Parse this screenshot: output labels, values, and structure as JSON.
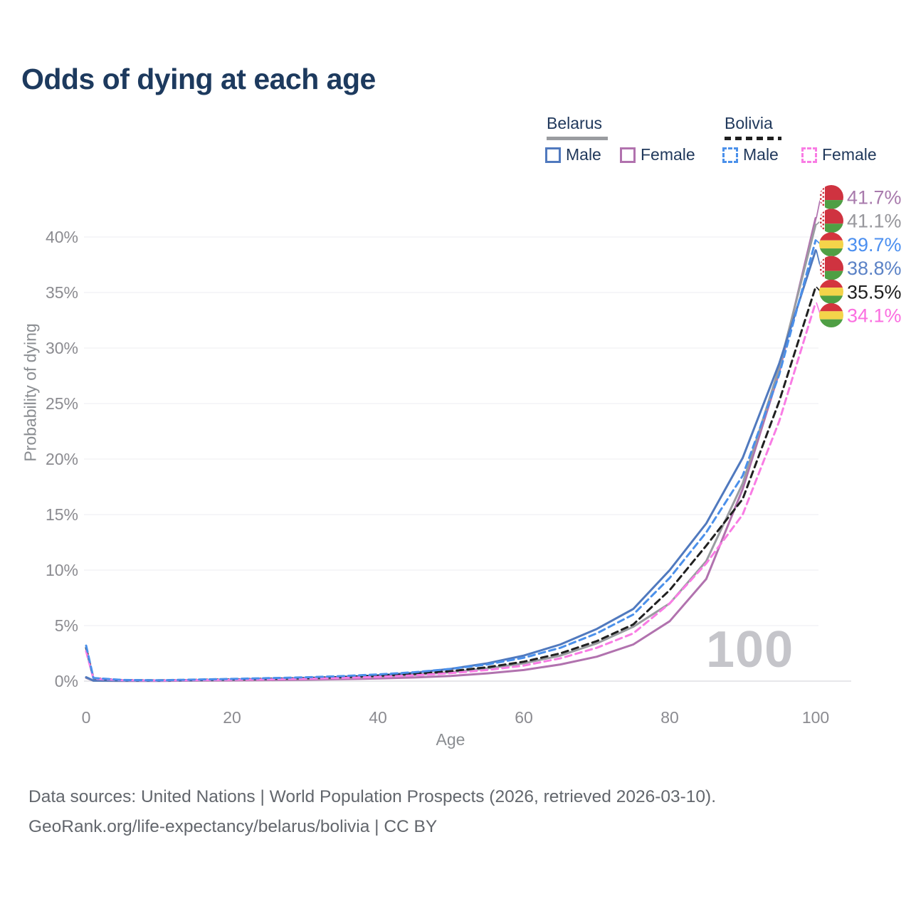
{
  "title": "Odds of dying at each age",
  "watermark": "100",
  "legend": {
    "groups": [
      {
        "label": "Belarus",
        "line_color": "#9a9ca0",
        "line_style": "solid"
      },
      {
        "label": "Bolivia",
        "line_color": "#1f1f1f",
        "line_style": "dashed"
      }
    ],
    "items": [
      {
        "label": "Male",
        "country": "Belarus",
        "box_color": "#5079be",
        "box_style": "solid"
      },
      {
        "label": "Female",
        "country": "Belarus",
        "box_color": "#b172ae",
        "box_style": "solid"
      },
      {
        "label": "Male",
        "country": "Bolivia",
        "box_color": "#4b90ea",
        "box_style": "dashed"
      },
      {
        "label": "Female",
        "country": "Bolivia",
        "box_color": "#f97ce4",
        "box_style": "dashed"
      }
    ]
  },
  "axes": {
    "x_label": "Age",
    "y_label": "Probability of dying",
    "x_ticks": [
      "0",
      "20",
      "40",
      "60",
      "80",
      "100"
    ],
    "x_tick_values": [
      0,
      20,
      40,
      60,
      80,
      100
    ],
    "y_ticks": [
      "0%",
      "5%",
      "10%",
      "15%",
      "20%",
      "25%",
      "30%",
      "35%",
      "40%"
    ],
    "y_tick_values": [
      0,
      5,
      10,
      15,
      20,
      25,
      30,
      35,
      40
    ]
  },
  "chart_data": {
    "type": "line",
    "title": "Odds of dying at each age",
    "xlabel": "Age",
    "ylabel": "Probability of dying",
    "xlim": [
      0,
      100
    ],
    "ylim_percent": [
      0,
      44
    ],
    "grid": true,
    "ages": [
      0,
      1,
      5,
      10,
      15,
      20,
      25,
      30,
      35,
      40,
      45,
      50,
      55,
      60,
      65,
      70,
      75,
      80,
      85,
      90,
      95,
      100
    ],
    "series": [
      {
        "id": "belarus-female",
        "name": "Belarus Female",
        "country": "Belarus",
        "sex": "female",
        "color": "#b172ae",
        "dashed": false,
        "values": [
          0.3,
          0.03,
          0.02,
          0.02,
          0.04,
          0.06,
          0.09,
          0.12,
          0.17,
          0.24,
          0.33,
          0.47,
          0.7,
          1.0,
          1.5,
          2.2,
          3.3,
          5.4,
          9.2,
          17.3,
          27.8,
          41.7
        ]
      },
      {
        "id": "belarus-total",
        "name": "Belarus",
        "country": "Belarus",
        "sex": "both",
        "color": "#9a9ca0",
        "dashed": false,
        "values": [
          0.33,
          0.04,
          0.03,
          0.03,
          0.06,
          0.1,
          0.15,
          0.2,
          0.28,
          0.38,
          0.55,
          0.8,
          1.15,
          1.6,
          2.3,
          3.4,
          4.9,
          7.0,
          10.8,
          17.8,
          28.2,
          41.1
        ]
      },
      {
        "id": "belarus-male",
        "name": "Belarus Male",
        "country": "Belarus",
        "sex": "male",
        "color": "#5079be",
        "dashed": false,
        "values": [
          0.35,
          0.05,
          0.04,
          0.04,
          0.09,
          0.14,
          0.2,
          0.28,
          0.38,
          0.52,
          0.75,
          1.1,
          1.6,
          2.3,
          3.3,
          4.7,
          6.5,
          10.0,
          14.2,
          20.1,
          28.6,
          38.8
        ]
      },
      {
        "id": "bolivia-total",
        "name": "Bolivia",
        "country": "Bolivia",
        "sex": "both",
        "color": "#202020",
        "dashed": true,
        "values": [
          3.0,
          0.25,
          0.09,
          0.07,
          0.11,
          0.16,
          0.21,
          0.27,
          0.36,
          0.48,
          0.65,
          0.9,
          1.25,
          1.75,
          2.5,
          3.6,
          5.1,
          8.2,
          12.2,
          16.4,
          25.2,
          35.5
        ]
      },
      {
        "id": "bolivia-female",
        "name": "Bolivia Female",
        "country": "Bolivia",
        "sex": "female",
        "color": "#f97ce4",
        "dashed": true,
        "values": [
          2.7,
          0.22,
          0.08,
          0.06,
          0.09,
          0.12,
          0.16,
          0.21,
          0.28,
          0.38,
          0.52,
          0.72,
          1.0,
          1.4,
          2.05,
          3.0,
          4.3,
          7.0,
          10.6,
          15.0,
          23.4,
          34.1
        ]
      },
      {
        "id": "bolivia-male",
        "name": "Bolivia Male",
        "country": "Bolivia",
        "sex": "male",
        "color": "#4b90ea",
        "dashed": true,
        "values": [
          3.2,
          0.28,
          0.1,
          0.08,
          0.14,
          0.2,
          0.27,
          0.34,
          0.45,
          0.6,
          0.8,
          1.1,
          1.5,
          2.1,
          3.0,
          4.3,
          6.0,
          9.3,
          13.4,
          18.5,
          27.6,
          39.7
        ]
      }
    ],
    "end_labels": [
      {
        "series": "belarus-female",
        "text": "41.7%",
        "value": 41.7,
        "flag": "belarus",
        "color": "#a87aac"
      },
      {
        "series": "belarus-total",
        "text": "41.1%",
        "value": 41.1,
        "flag": "belarus",
        "color": "#97979c"
      },
      {
        "series": "bolivia-male",
        "text": "39.7%",
        "value": 39.7,
        "flag": "bolivia",
        "color": "#4b8ff0"
      },
      {
        "series": "belarus-male",
        "text": "38.8%",
        "value": 38.8,
        "flag": "belarus",
        "color": "#5b82c6"
      },
      {
        "series": "bolivia-total",
        "text": "35.5%",
        "value": 35.5,
        "flag": "bolivia",
        "color": "#1f1f1f"
      },
      {
        "series": "bolivia-female",
        "text": "34.1%",
        "value": 34.1,
        "flag": "bolivia",
        "color": "#fb6fe0"
      }
    ],
    "flag_colors": {
      "belarus_red": "#cf3340",
      "belarus_green": "#4f9f44",
      "belarus_white": "#ffffff",
      "bolivia_red": "#d4343e",
      "bolivia_yellow": "#f4d44a",
      "bolivia_green": "#4f9f44"
    },
    "age_cursor": "100"
  },
  "footer": {
    "line1": "Data sources: United Nations | World Population Prospects (2026, retrieved 2026-03-10).",
    "line2": "GeoRank.org/life-expectancy/belarus/bolivia | CC BY"
  }
}
